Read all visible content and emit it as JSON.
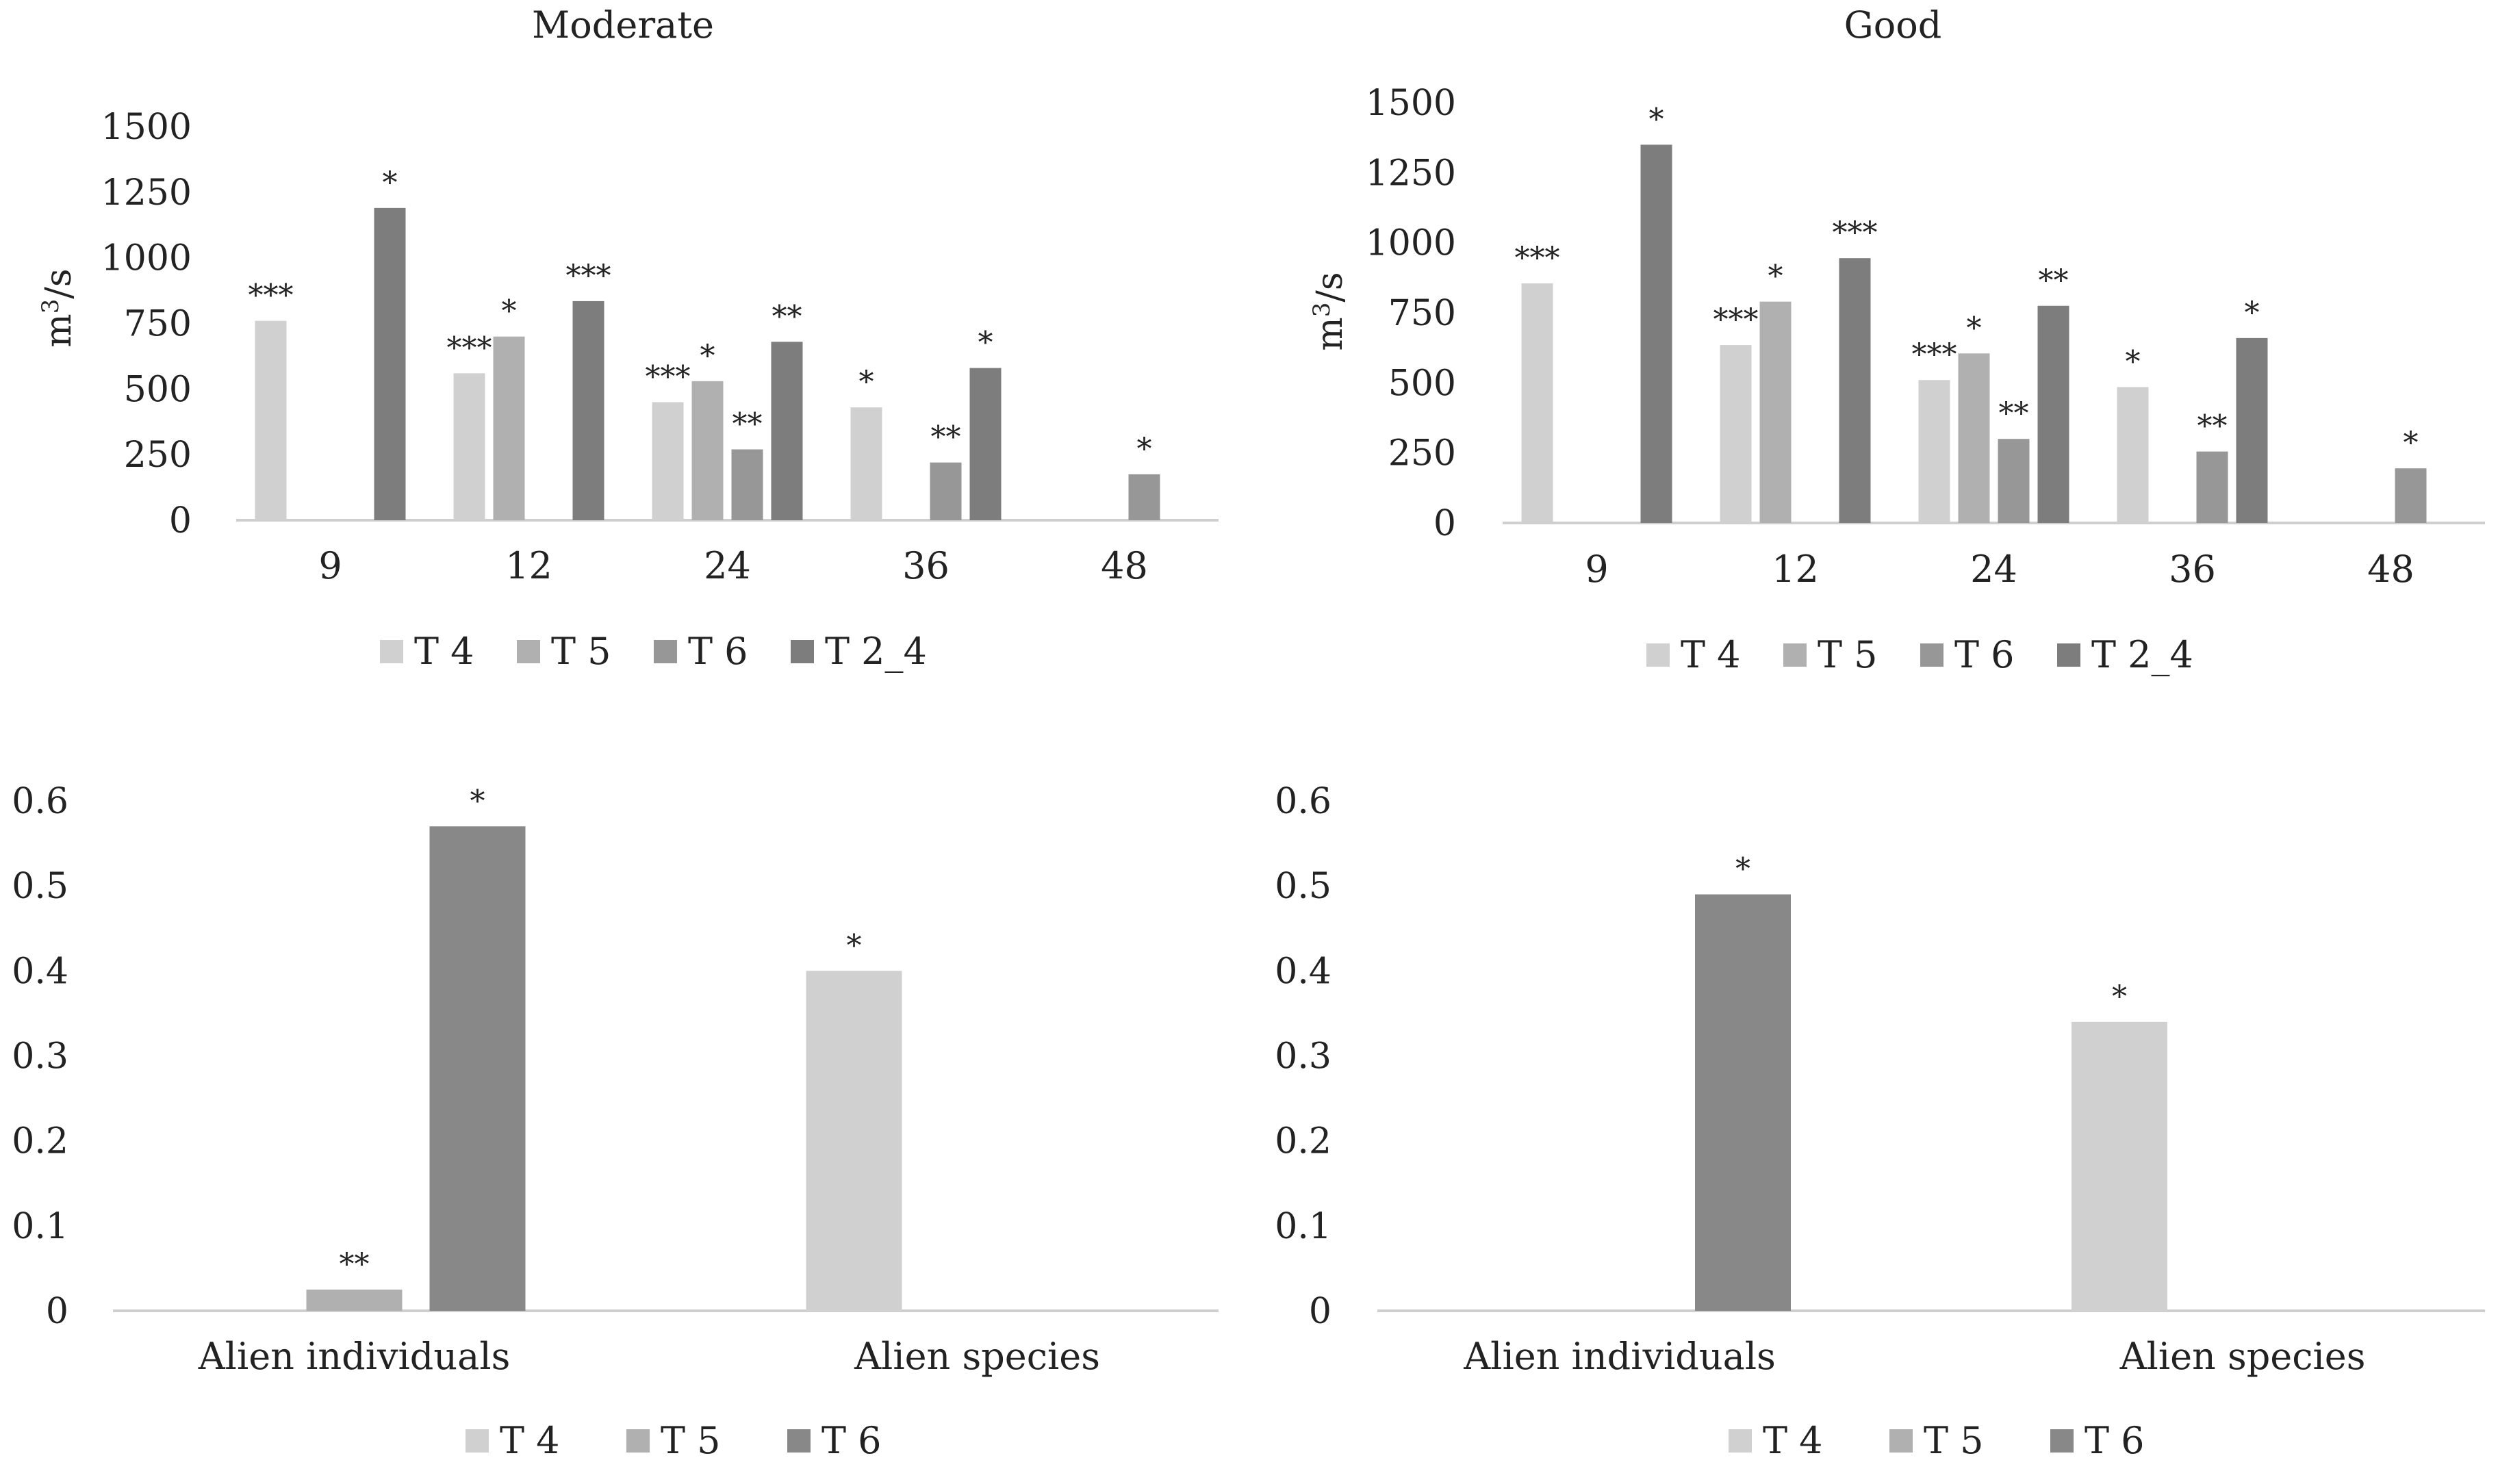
{
  "colors": {
    "T 4": "#d0d0d0",
    "T 5": "#b0b0b0",
    "T 6": "#979797",
    "T 2_4": "#7d7d7d",
    "T 6 (b)": "#888888",
    "axis": "#cfcfcf"
  },
  "chart_data": [
    {
      "id": "moderate-flow",
      "type": "bar",
      "title": "Moderate",
      "ylabel_base": "m",
      "ylabel_sup": "3",
      "ylabel_rest": "/s",
      "ylim": [
        0,
        1500
      ],
      "yticks": [
        "0",
        "250",
        "500",
        "750",
        "1000",
        "1250",
        "1500"
      ],
      "categories": [
        "9",
        "12",
        "24",
        "36",
        "48"
      ],
      "series": [
        {
          "name": "T 4",
          "values": [
            760,
            560,
            450,
            430,
            null
          ],
          "labels": [
            "***",
            "***",
            "***",
            "*",
            ""
          ]
        },
        {
          "name": "T 5",
          "values": [
            null,
            700,
            530,
            null,
            null
          ],
          "labels": [
            "",
            "*",
            "*",
            "",
            ""
          ]
        },
        {
          "name": "T 6",
          "values": [
            null,
            null,
            270,
            220,
            175
          ],
          "labels": [
            "",
            "",
            "**",
            "**",
            "*"
          ]
        },
        {
          "name": "T 2_4",
          "values": [
            1190,
            835,
            680,
            580,
            null
          ],
          "labels": [
            "*",
            "***",
            "**",
            "*",
            ""
          ]
        }
      ],
      "legend": [
        "T 4",
        "T 5",
        "T 6",
        "T 2_4"
      ]
    },
    {
      "id": "good-flow",
      "type": "bar",
      "title": "Good",
      "ylabel_base": "m",
      "ylabel_sup": "3",
      "ylabel_rest": "/s",
      "ylim": [
        0,
        1500
      ],
      "yticks": [
        "0",
        "250",
        "500",
        "750",
        "1000",
        "1250",
        "1500"
      ],
      "categories": [
        "9",
        "12",
        "24",
        "36",
        "48"
      ],
      "series": [
        {
          "name": "T 4",
          "values": [
            855,
            635,
            510,
            485,
            null
          ],
          "labels": [
            "***",
            "***",
            "***",
            "*",
            ""
          ]
        },
        {
          "name": "T 5",
          "values": [
            null,
            790,
            605,
            null,
            null
          ],
          "labels": [
            "",
            "*",
            "*",
            "",
            ""
          ]
        },
        {
          "name": "T 6",
          "values": [
            null,
            null,
            300,
            255,
            195
          ],
          "labels": [
            "",
            "",
            "**",
            "**",
            "*"
          ]
        },
        {
          "name": "T 2_4",
          "values": [
            1350,
            945,
            775,
            660,
            null
          ],
          "labels": [
            "*",
            "***",
            "**",
            "*",
            ""
          ]
        }
      ],
      "legend": [
        "T 4",
        "T 5",
        "T 6",
        "T 2_4"
      ]
    },
    {
      "id": "moderate-alien",
      "type": "bar",
      "ylim": [
        0,
        0.6
      ],
      "yticks": [
        "0",
        "0.1",
        "0.2",
        "0.3",
        "0.4",
        "0.5",
        "0.6"
      ],
      "categories": [
        "Alien individuals",
        "Alien species"
      ],
      "series": [
        {
          "name": "T 4",
          "values": [
            null,
            0.4
          ],
          "labels": [
            "",
            "*"
          ]
        },
        {
          "name": "T 5",
          "values": [
            0.025,
            null
          ],
          "labels": [
            "**",
            ""
          ]
        },
        {
          "name": "T 6",
          "values": [
            0.57,
            null
          ],
          "labels": [
            "*",
            ""
          ]
        }
      ],
      "legend": [
        "T 4",
        "T 5",
        "T 6"
      ]
    },
    {
      "id": "good-alien",
      "type": "bar",
      "ylim": [
        0,
        0.6
      ],
      "yticks": [
        "0",
        "0.1",
        "0.2",
        "0.3",
        "0.4",
        "0.5",
        "0.6"
      ],
      "categories": [
        "Alien individuals",
        "Alien species"
      ],
      "series": [
        {
          "name": "T 4",
          "values": [
            null,
            0.34
          ],
          "labels": [
            "",
            "*"
          ]
        },
        {
          "name": "T 5",
          "values": [
            null,
            null
          ],
          "labels": [
            "",
            ""
          ]
        },
        {
          "name": "T 6",
          "values": [
            0.49,
            null
          ],
          "labels": [
            "*",
            ""
          ]
        }
      ],
      "legend": [
        "T 4",
        "T 5",
        "T 6"
      ]
    }
  ]
}
